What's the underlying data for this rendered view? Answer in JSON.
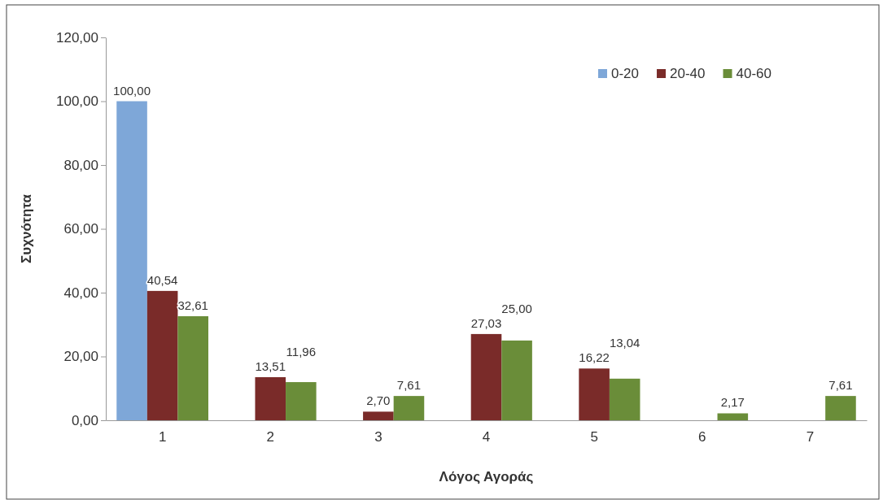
{
  "chart_data": {
    "type": "bar",
    "xlabel": "Λόγος Αγοράς",
    "ylabel": "Συχνότητα",
    "categories": [
      "1",
      "2",
      "3",
      "4",
      "5",
      "6",
      "7"
    ],
    "series": [
      {
        "name": "0-20",
        "color": "#7ea7d8",
        "values": [
          100,
          null,
          null,
          null,
          null,
          null,
          null
        ],
        "value_labels": [
          "100,00",
          null,
          null,
          null,
          null,
          null,
          null
        ]
      },
      {
        "name": "20-40",
        "color": "#7a2b29",
        "values": [
          40.54,
          13.51,
          2.7,
          27.03,
          16.22,
          null,
          null
        ],
        "value_labels": [
          "40,54",
          "13,51",
          "2,70",
          "27,03",
          "16,22",
          null,
          null
        ]
      },
      {
        "name": "40-60",
        "color": "#6a8d39",
        "values": [
          32.61,
          11.96,
          7.61,
          25.0,
          13.04,
          2.17,
          7.61
        ],
        "value_labels": [
          "32,61",
          "11,96",
          "7,61",
          "25,00",
          "13,04",
          "2,17",
          "7,61"
        ]
      }
    ],
    "ylim": [
      0,
      120
    ],
    "yticks": [
      {
        "value": 0,
        "label": "0,00"
      },
      {
        "value": 20,
        "label": "20,00"
      },
      {
        "value": 40,
        "label": "40,00"
      },
      {
        "value": 60,
        "label": "60,00"
      },
      {
        "value": 80,
        "label": "80,00"
      },
      {
        "value": 100,
        "label": "100,00"
      },
      {
        "value": 120,
        "label": "120,00"
      }
    ],
    "legend": "top right"
  }
}
